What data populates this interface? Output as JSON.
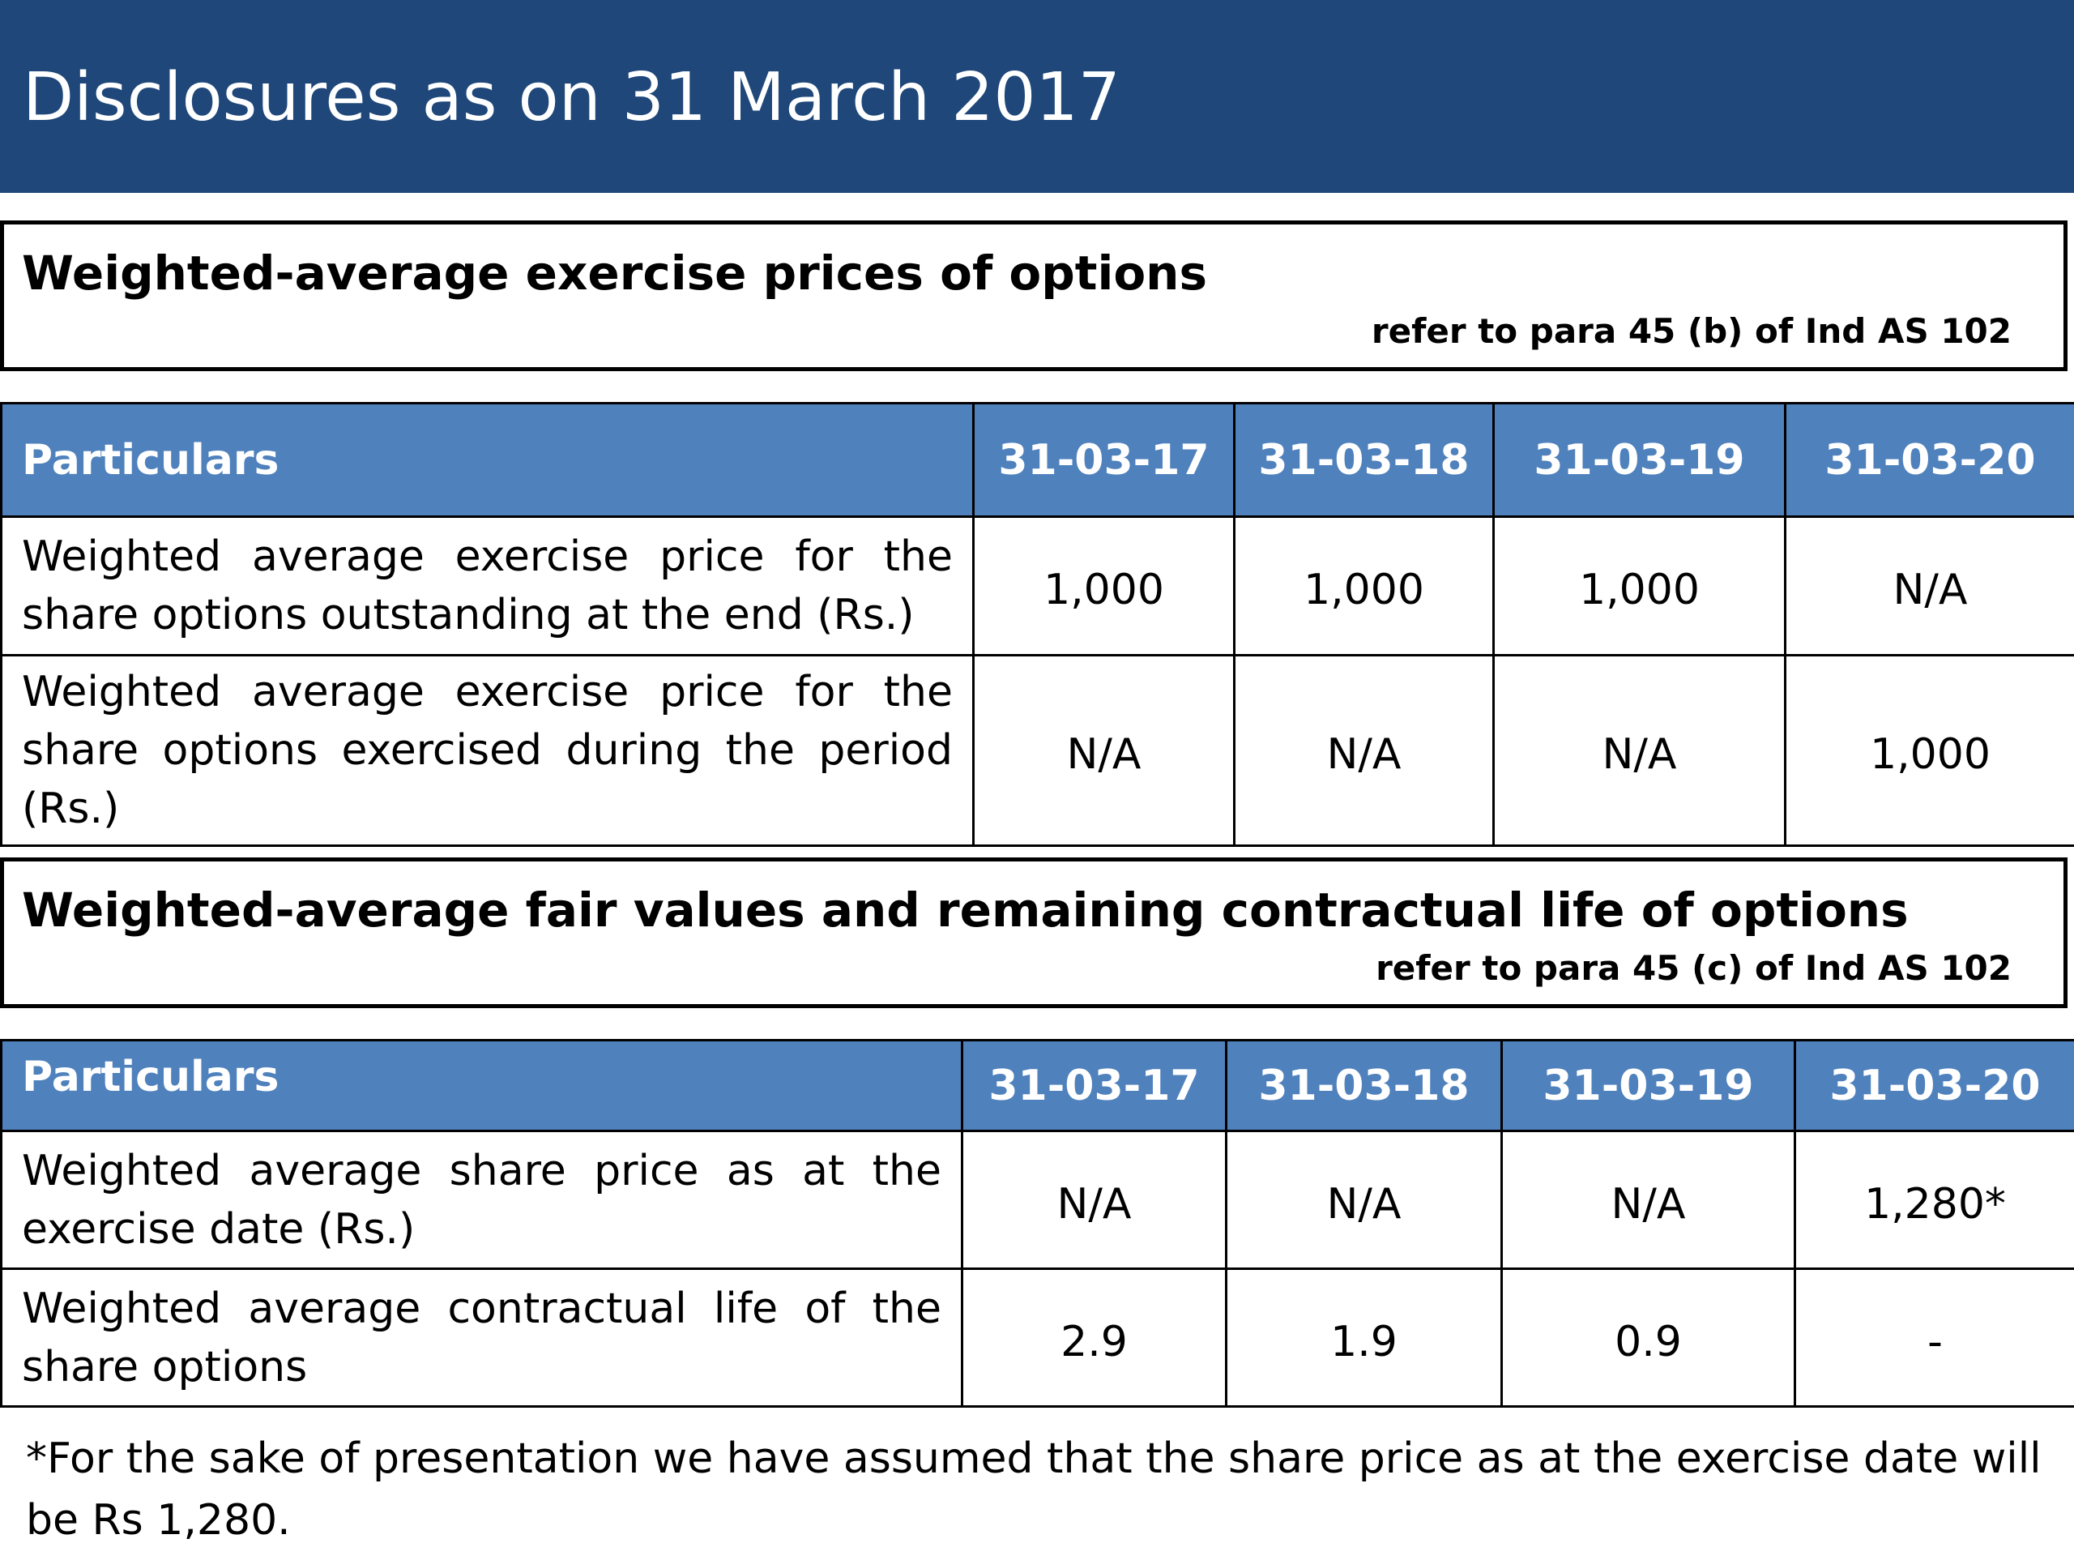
{
  "header": {
    "title": "Disclosures as on 31 March 2017"
  },
  "section1": {
    "title": "Weighted-average exercise prices of options",
    "reference": "refer to para 45 (b) of Ind AS 102",
    "table": {
      "columns": [
        "Particulars",
        "31-03-17",
        "31-03-18",
        "31-03-19",
        "31-03-20"
      ],
      "rows": [
        {
          "label": "Weighted average exercise price for the share options outstanding at the end (Rs.)",
          "values": [
            "1,000",
            "1,000",
            "1,000",
            "N/A"
          ]
        },
        {
          "label": "Weighted average exercise price for the share options exercised during the period (Rs.)",
          "values": [
            "N/A",
            "N/A",
            "N/A",
            "1,000"
          ]
        }
      ]
    }
  },
  "section2": {
    "title": "Weighted-average fair values and remaining contractual life of options",
    "reference": "refer to para 45 (c) of Ind AS 102",
    "table": {
      "columns": [
        "Particulars",
        "31-03-17",
        "31-03-18",
        "31-03-19",
        "31-03-20"
      ],
      "rows": [
        {
          "label": "Weighted average share price as at the exercise date (Rs.)",
          "values": [
            "N/A",
            "N/A",
            "N/A",
            "1,280*"
          ]
        },
        {
          "label": "Weighted average contractual life of the share options",
          "values": [
            "2.9",
            "1.9",
            "0.9",
            "-"
          ]
        }
      ]
    }
  },
  "footnote": "*For the sake of presentation we have assumed that the share price as at the exercise date will be Rs 1,280.",
  "colors": {
    "header_bg": "#1f477a",
    "table_header_bg": "#4f81bd",
    "table_header_text": "#ffffff"
  }
}
